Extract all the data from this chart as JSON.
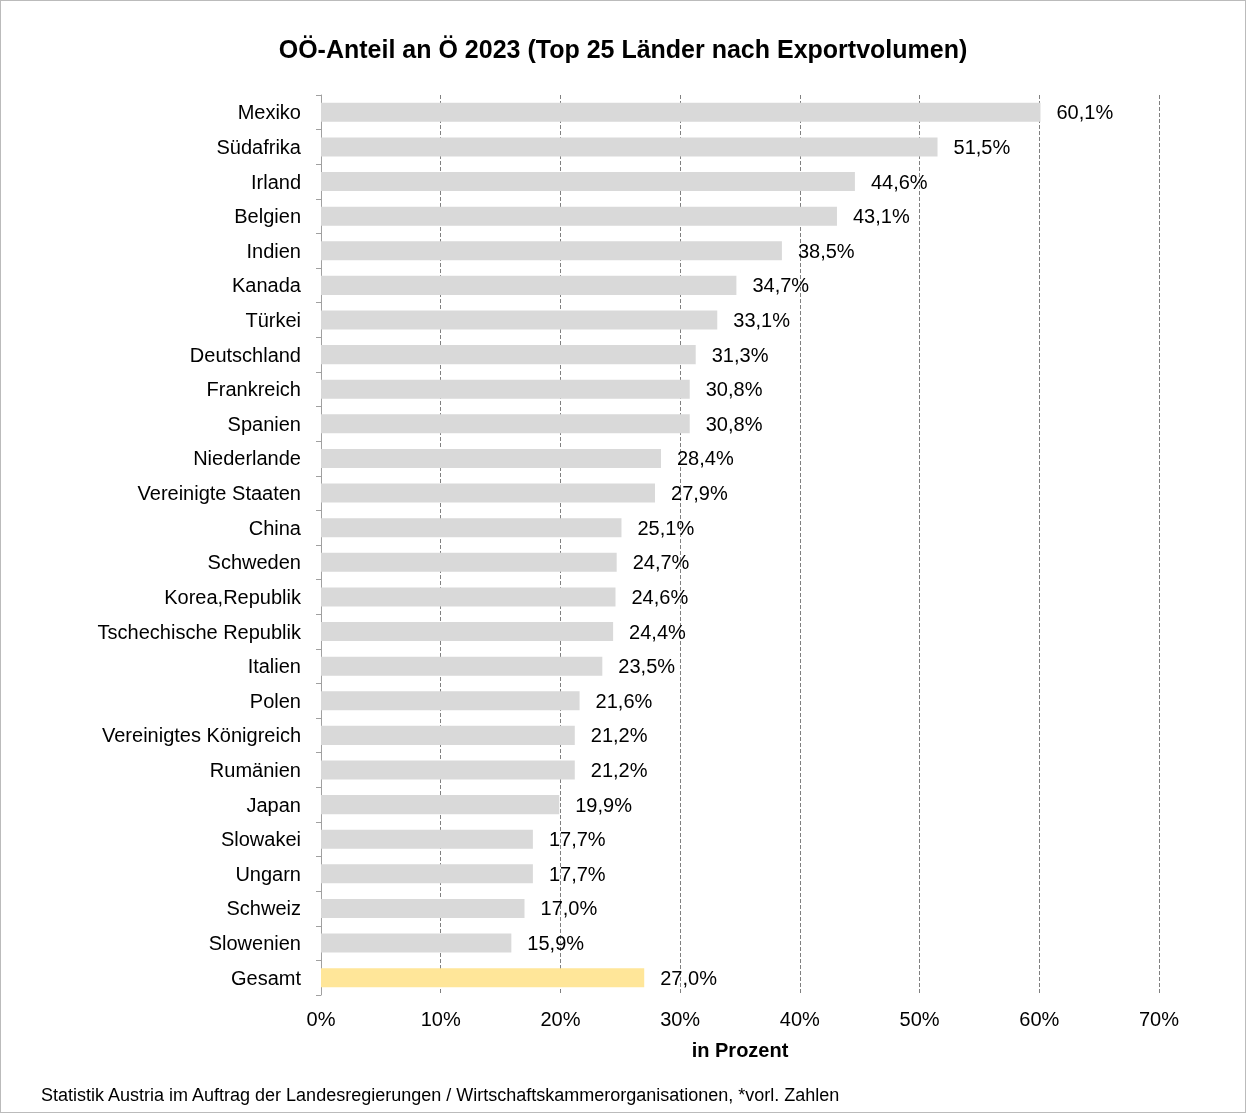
{
  "chart_data": {
    "type": "bar",
    "orientation": "horizontal",
    "title": "OÖ-Anteil an Ö 2023 (Top 25 Länder nach Exportvolumen)",
    "xlabel": "in Prozent",
    "categories": [
      "Mexiko",
      "Südafrika",
      "Irland",
      "Belgien",
      "Indien",
      "Kanada",
      "Türkei",
      "Deutschland",
      "Frankreich",
      "Spanien",
      "Niederlande",
      "Vereinigte Staaten",
      "China",
      "Schweden",
      "Korea,Republik",
      "Tschechische Republik",
      "Italien",
      "Polen",
      "Vereinigtes Königreich",
      "Rumänien",
      "Japan",
      "Slowakei",
      "Ungarn",
      "Schweiz",
      "Slowenien",
      "Gesamt"
    ],
    "values": [
      60.1,
      51.5,
      44.6,
      43.1,
      38.5,
      34.7,
      33.1,
      31.3,
      30.8,
      30.8,
      28.4,
      27.9,
      25.1,
      24.7,
      24.6,
      24.4,
      23.5,
      21.6,
      21.2,
      21.2,
      19.9,
      17.7,
      17.7,
      17.0,
      15.9,
      27.0
    ],
    "value_labels": [
      "60,1%",
      "51,5%",
      "44,6%",
      "43,1%",
      "38,5%",
      "34,7%",
      "33,1%",
      "31,3%",
      "30,8%",
      "30,8%",
      "28,4%",
      "27,9%",
      "25,1%",
      "24,7%",
      "24,6%",
      "24,4%",
      "23,5%",
      "21,6%",
      "21,2%",
      "21,2%",
      "19,9%",
      "17,7%",
      "17,7%",
      "17,0%",
      "15,9%",
      "27,0%"
    ],
    "colors": [
      "#d9d9d9",
      "#d9d9d9",
      "#d9d9d9",
      "#d9d9d9",
      "#d9d9d9",
      "#d9d9d9",
      "#d9d9d9",
      "#d9d9d9",
      "#d9d9d9",
      "#d9d9d9",
      "#d9d9d9",
      "#d9d9d9",
      "#d9d9d9",
      "#d9d9d9",
      "#d9d9d9",
      "#d9d9d9",
      "#d9d9d9",
      "#d9d9d9",
      "#d9d9d9",
      "#d9d9d9",
      "#d9d9d9",
      "#d9d9d9",
      "#d9d9d9",
      "#d9d9d9",
      "#d9d9d9",
      "#ffe699"
    ],
    "xlim": [
      0,
      70
    ],
    "xticks": [
      {
        "value": 0,
        "label": "0%"
      },
      {
        "value": 10,
        "label": "10%"
      },
      {
        "value": 20,
        "label": "20%"
      },
      {
        "value": 30,
        "label": "30%"
      },
      {
        "value": 40,
        "label": "40%"
      },
      {
        "value": 50,
        "label": "50%"
      },
      {
        "value": 60,
        "label": "60%"
      },
      {
        "value": 70,
        "label": "70%"
      }
    ],
    "grid": "x",
    "annotations": [
      "Statistik Austria im Auftrag der Landesregierungen / Wirtschaftskammerorganisationen, *vorl. Zahlen"
    ]
  }
}
